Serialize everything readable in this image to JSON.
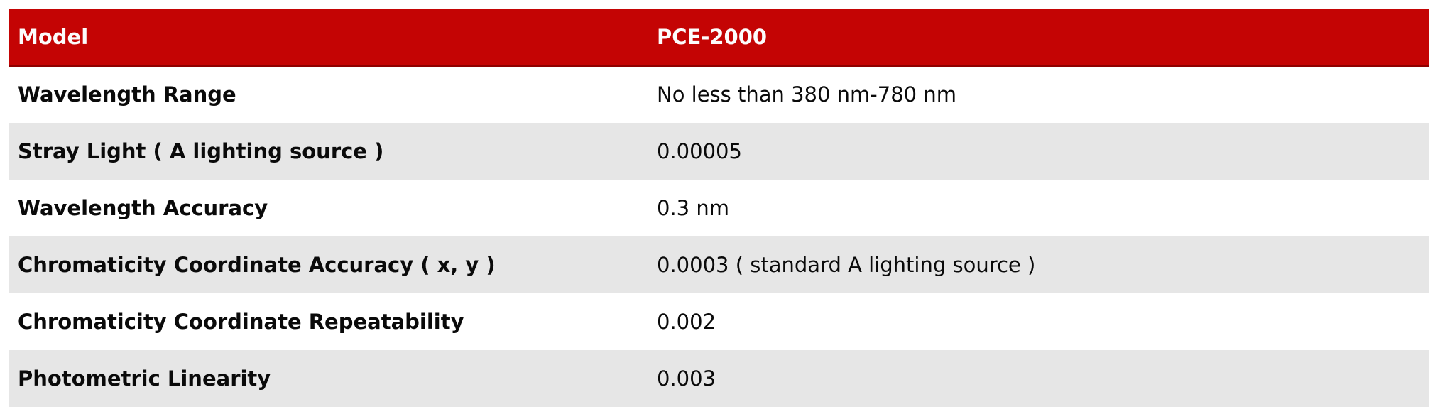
{
  "table": {
    "header": {
      "col1": "Model",
      "col2": "PCE-2000"
    },
    "rows": [
      {
        "label": "Wavelength Range",
        "value": "No less than 380 nm-780 nm"
      },
      {
        "label": "Stray Light ( A lighting source )",
        "value": "0.00005"
      },
      {
        "label": "Wavelength Accuracy",
        "value": "0.3 nm"
      },
      {
        "label": "Chromaticity Coordinate Accuracy ( x, y )",
        "value": "0.0003 ( standard A lighting source )"
      },
      {
        "label": "Chromaticity Coordinate Repeatability",
        "value": "0.002"
      },
      {
        "label": "Photometric Linearity",
        "value": "0.003"
      }
    ],
    "colors": {
      "header_bg": "#c40404",
      "header_border": "#8f0000",
      "header_text": "#fcfcfc",
      "stripe_bg": "#e6e6e6",
      "row_bg": "#ffffff",
      "label_text": "#0a0a0a",
      "value_text": "#0a0a0a",
      "page_bg": "#ffffff"
    }
  }
}
